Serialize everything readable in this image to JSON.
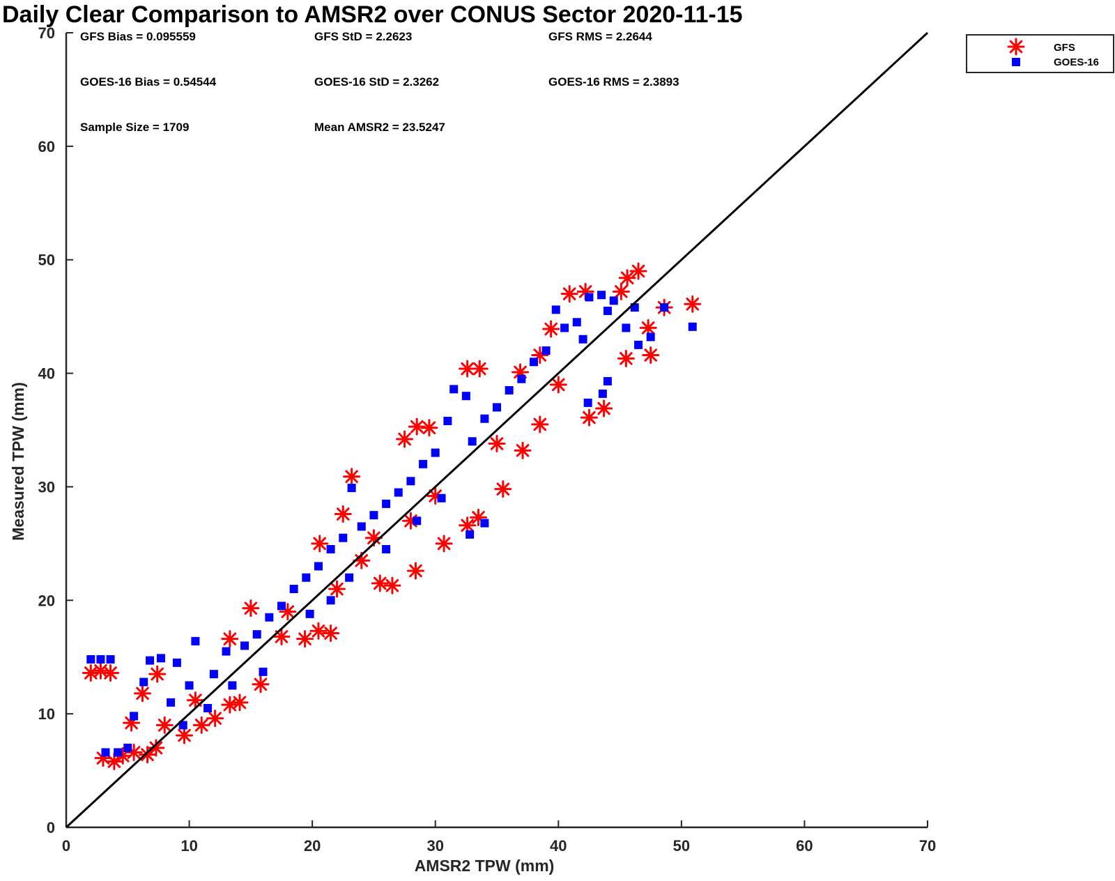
{
  "chart_data": {
    "type": "scatter",
    "title": "Daily Clear Comparison to AMSR2 over CONUS Sector 2020-11-15",
    "xlabel": "AMSR2 TPW (mm)",
    "ylabel": "Measured TPW (mm)",
    "xlim": [
      0,
      70
    ],
    "ylim": [
      0,
      70
    ],
    "x_ticks": [
      "0",
      "10",
      "20",
      "30",
      "40",
      "50",
      "60",
      "70"
    ],
    "y_ticks": [
      "0",
      "10",
      "20",
      "30",
      "40",
      "50",
      "60",
      "70"
    ],
    "grid": false,
    "legend_position": "outside top-right",
    "reference_line": {
      "description": "one-to-one line",
      "from": [
        0,
        0
      ],
      "to": [
        70,
        70
      ],
      "color": "#000000"
    },
    "stats": {
      "gfs_bias": "GFS Bias = 0.095559",
      "gfs_std": "GFS StD = 2.2623",
      "gfs_rms": "GFS RMS = 2.2644",
      "goes_bias": "GOES-16 Bias = 0.54544",
      "goes_std": "GOES-16 StD = 2.3262",
      "goes_rms": "GOES-16 RMS = 2.3893",
      "sample_size": "Sample Size = 1709",
      "mean_amsr2": "Mean AMSR2 = 23.5247"
    },
    "series": [
      {
        "name": "GFS",
        "marker": "asterisk",
        "color": "#ff0000",
        "points": [
          [
            2.0,
            13.6
          ],
          [
            2.8,
            13.8
          ],
          [
            3.6,
            13.6
          ],
          [
            3.0,
            6.1
          ],
          [
            3.9,
            5.8
          ],
          [
            4.6,
            6.3
          ],
          [
            5.5,
            6.6
          ],
          [
            6.6,
            6.4
          ],
          [
            7.3,
            7.0
          ],
          [
            5.3,
            9.2
          ],
          [
            6.2,
            11.8
          ],
          [
            7.4,
            13.5
          ],
          [
            9.6,
            8.1
          ],
          [
            11.0,
            9.0
          ],
          [
            12.1,
            9.6
          ],
          [
            13.3,
            10.8
          ],
          [
            14.1,
            11.0
          ],
          [
            15.8,
            12.6
          ],
          [
            13.3,
            16.6
          ],
          [
            15.0,
            19.3
          ],
          [
            17.5,
            16.8
          ],
          [
            19.4,
            16.6
          ],
          [
            20.5,
            17.3
          ],
          [
            21.5,
            17.1
          ],
          [
            20.6,
            25.0
          ],
          [
            22.5,
            27.6
          ],
          [
            23.2,
            30.9
          ],
          [
            25.5,
            21.5
          ],
          [
            26.5,
            21.3
          ],
          [
            28.4,
            22.6
          ],
          [
            27.5,
            34.2
          ],
          [
            28.5,
            35.3
          ],
          [
            29.5,
            35.2
          ],
          [
            30.7,
            25.0
          ],
          [
            32.6,
            26.6
          ],
          [
            33.5,
            27.3
          ],
          [
            32.6,
            40.4
          ],
          [
            33.6,
            40.4
          ],
          [
            35.5,
            29.8
          ],
          [
            36.9,
            40.1
          ],
          [
            37.1,
            33.2
          ],
          [
            38.5,
            35.5
          ],
          [
            38.5,
            41.6
          ],
          [
            39.4,
            43.9
          ],
          [
            40.9,
            47.0
          ],
          [
            42.2,
            47.2
          ],
          [
            42.5,
            36.1
          ],
          [
            43.7,
            36.9
          ],
          [
            45.1,
            47.2
          ],
          [
            45.6,
            48.4
          ],
          [
            46.5,
            49.0
          ],
          [
            45.5,
            41.3
          ],
          [
            47.5,
            41.6
          ],
          [
            47.3,
            44.0
          ],
          [
            48.6,
            45.8
          ],
          [
            50.9,
            46.1
          ],
          [
            25.0,
            25.5
          ],
          [
            30.0,
            29.2
          ],
          [
            35.0,
            33.8
          ],
          [
            40.0,
            39.0
          ],
          [
            18.0,
            19.0
          ],
          [
            22.0,
            21.0
          ],
          [
            24.0,
            23.5
          ],
          [
            28.0,
            27.0
          ],
          [
            10.5,
            11.2
          ],
          [
            8.0,
            9.0
          ]
        ]
      },
      {
        "name": "GOES-16",
        "marker": "square",
        "color": "#0000ff",
        "points": [
          [
            2.0,
            14.8
          ],
          [
            2.8,
            14.8
          ],
          [
            3.6,
            14.8
          ],
          [
            3.2,
            6.6
          ],
          [
            4.2,
            6.6
          ],
          [
            5.0,
            7.0
          ],
          [
            5.5,
            9.8
          ],
          [
            6.3,
            12.8
          ],
          [
            6.8,
            14.7
          ],
          [
            7.7,
            14.9
          ],
          [
            9.0,
            14.5
          ],
          [
            10.5,
            16.4
          ],
          [
            8.5,
            11.0
          ],
          [
            10.0,
            12.5
          ],
          [
            12.0,
            13.5
          ],
          [
            13.0,
            15.5
          ],
          [
            14.5,
            16.0
          ],
          [
            15.5,
            17.0
          ],
          [
            16.5,
            18.5
          ],
          [
            17.5,
            19.5
          ],
          [
            18.5,
            21.0
          ],
          [
            19.5,
            22.0
          ],
          [
            20.5,
            23.0
          ],
          [
            21.5,
            24.5
          ],
          [
            22.5,
            25.5
          ],
          [
            23.2,
            29.9
          ],
          [
            24.0,
            26.5
          ],
          [
            25.0,
            27.5
          ],
          [
            26.0,
            28.5
          ],
          [
            27.0,
            29.5
          ],
          [
            28.0,
            30.5
          ],
          [
            29.0,
            32.0
          ],
          [
            30.0,
            33.0
          ],
          [
            31.0,
            35.8
          ],
          [
            31.5,
            38.6
          ],
          [
            32.5,
            38.0
          ],
          [
            33.0,
            34.0
          ],
          [
            34.0,
            36.0
          ],
          [
            35.0,
            37.0
          ],
          [
            36.0,
            38.5
          ],
          [
            37.0,
            39.5
          ],
          [
            38.0,
            41.0
          ],
          [
            39.0,
            42.0
          ],
          [
            39.8,
            45.6
          ],
          [
            40.5,
            44.0
          ],
          [
            41.5,
            44.5
          ],
          [
            42.0,
            43.0
          ],
          [
            42.5,
            46.7
          ],
          [
            43.5,
            46.9
          ],
          [
            44.0,
            45.5
          ],
          [
            44.5,
            46.4
          ],
          [
            45.5,
            44.0
          ],
          [
            46.2,
            45.8
          ],
          [
            46.5,
            42.5
          ],
          [
            47.5,
            43.2
          ],
          [
            48.6,
            45.8
          ],
          [
            50.9,
            44.1
          ],
          [
            43.6,
            38.2
          ],
          [
            44.0,
            39.3
          ],
          [
            42.4,
            37.4
          ],
          [
            34.0,
            26.8
          ],
          [
            32.8,
            25.8
          ],
          [
            19.8,
            18.8
          ],
          [
            21.5,
            20.0
          ],
          [
            23.0,
            22.0
          ],
          [
            26.0,
            24.5
          ],
          [
            28.5,
            27.0
          ],
          [
            30.5,
            29.0
          ],
          [
            16.0,
            13.7
          ],
          [
            13.5,
            12.5
          ],
          [
            11.5,
            10.5
          ],
          [
            9.5,
            9.0
          ]
        ]
      }
    ]
  },
  "legend": {
    "items": [
      {
        "label": "GFS",
        "marker": "asterisk",
        "color": "#ff0000"
      },
      {
        "label": "GOES-16",
        "marker": "square",
        "color": "#0000ff"
      }
    ]
  }
}
